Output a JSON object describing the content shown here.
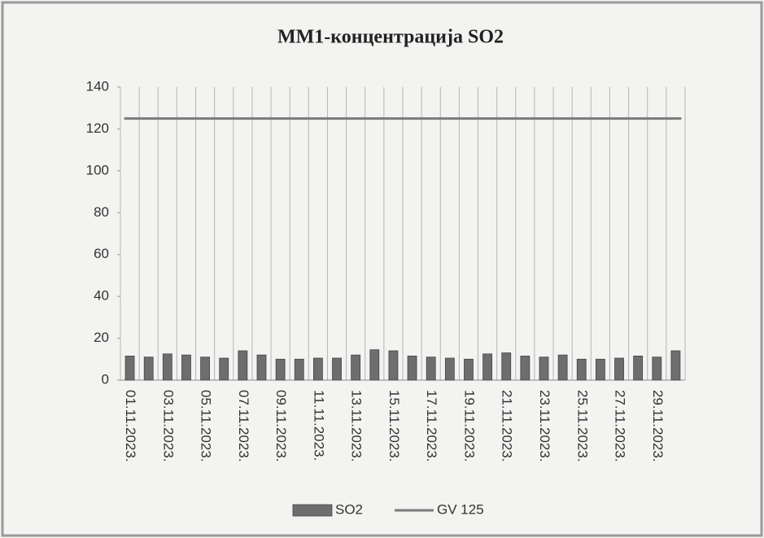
{
  "chart_data": {
    "type": "bar",
    "title": "ММ1-концентрација SO2",
    "categories": [
      "01.11.2023.",
      null,
      "03.11.2023.",
      null,
      "05.11.2023.",
      null,
      "07.11.2023.",
      null,
      "09.11.2023.",
      null,
      "11.11.2023.",
      null,
      "13.11.2023.",
      null,
      "15.11.2023.",
      null,
      "17.11.2023.",
      null,
      "19.11.2023.",
      null,
      "21.11.2023.",
      null,
      "23.11.2023.",
      null,
      "25.11.2023.",
      null,
      "27.11.2023.",
      null,
      "29.11.2023.",
      null
    ],
    "series": [
      {
        "name": "SO2",
        "type": "bar",
        "color": "#6e6e6e",
        "values": [
          11.5,
          11,
          12.5,
          12,
          11,
          10.5,
          14,
          12,
          10,
          10,
          10.5,
          10.5,
          12,
          14.5,
          14,
          11.5,
          11,
          10.5,
          10,
          12.5,
          13,
          11.5,
          11,
          12,
          10,
          10,
          10.5,
          11.5,
          11,
          14
        ]
      },
      {
        "name": "GV 125",
        "type": "line",
        "color": "#7a7a7a",
        "values": [
          125,
          125,
          125,
          125,
          125,
          125,
          125,
          125,
          125,
          125,
          125,
          125,
          125,
          125,
          125,
          125,
          125,
          125,
          125,
          125,
          125,
          125,
          125,
          125,
          125,
          125,
          125,
          125,
          125,
          125
        ]
      }
    ],
    "ylim": [
      0,
      140
    ],
    "yticks": [
      0,
      20,
      40,
      60,
      80,
      100,
      120,
      140
    ],
    "legend": "bottom"
  }
}
